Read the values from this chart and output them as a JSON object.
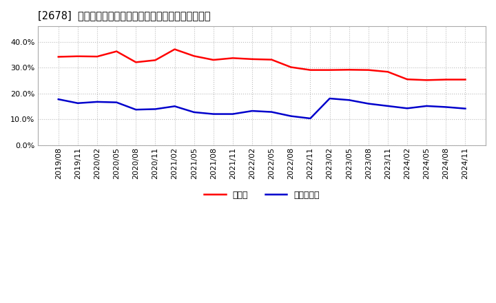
{
  "title": "[2678]  現頂金、有利子負債の総資産に対する比率の推移",
  "legend_cash": "現頂金",
  "legend_debt": "有利子負債",
  "cash_color": "#ff0000",
  "debt_color": "#0000cc",
  "background_color": "#ffffff",
  "plot_bg_color": "#ffffff",
  "grid_color": "#bbbbbb",
  "ylim": [
    0.0,
    0.46
  ],
  "yticks": [
    0.0,
    0.1,
    0.2,
    0.3,
    0.4
  ],
  "x_labels": [
    "2019/08",
    "2019/11",
    "2020/02",
    "2020/05",
    "2020/08",
    "2020/11",
    "2021/02",
    "2021/05",
    "2021/08",
    "2021/11",
    "2022/02",
    "2022/05",
    "2022/08",
    "2022/11",
    "2023/02",
    "2023/05",
    "2023/08",
    "2023/11",
    "2024/02",
    "2024/05",
    "2024/08",
    "2024/11"
  ],
  "cash_values": [
    0.342,
    0.344,
    0.343,
    0.363,
    0.321,
    0.329,
    0.371,
    0.345,
    0.33,
    0.337,
    0.333,
    0.331,
    0.302,
    0.291,
    0.291,
    0.292,
    0.291,
    0.284,
    0.255,
    0.252,
    0.254,
    0.254
  ],
  "debt_values": [
    0.178,
    0.163,
    0.168,
    0.166,
    0.138,
    0.14,
    0.151,
    0.128,
    0.121,
    0.121,
    0.133,
    0.129,
    0.113,
    0.104,
    0.181,
    0.175,
    0.161,
    0.152,
    0.143,
    0.152,
    0.148,
    0.142
  ]
}
